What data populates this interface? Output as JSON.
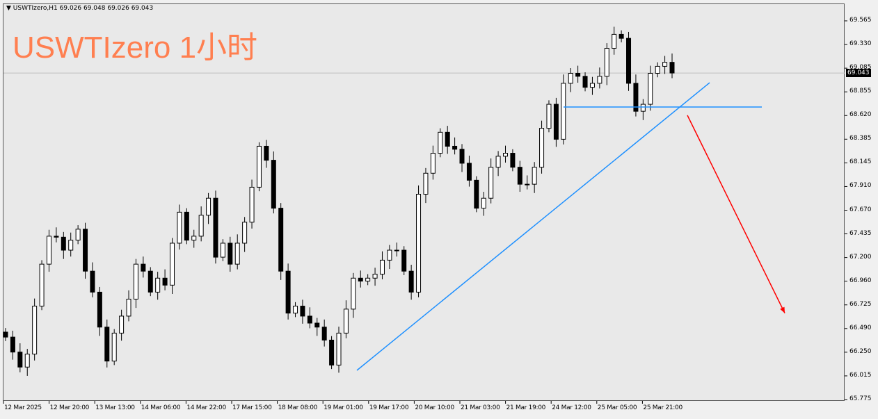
{
  "header": {
    "symbol_line": "USWTIzero,H1  69.026 69.048 69.026 69.043",
    "overlay_title": "USWTIzero 1小时"
  },
  "colors": {
    "title": "#ff7f50",
    "trendline": "#1e90ff",
    "arrow": "#ff0000",
    "background": "#e9e9e9",
    "bid_line": "#c0c0c0"
  },
  "chart_data": {
    "type": "candlestick",
    "symbol": "USWTIzero",
    "timeframe": "H1",
    "ohlc_last": {
      "open": 69.026,
      "high": 69.048,
      "low": 69.026,
      "close": 69.043
    },
    "bid": "69.043",
    "ylim": [
      65.775,
      69.565
    ],
    "y_ticks": [
      "69.565",
      "69.330",
      "69.085",
      "68.855",
      "68.620",
      "68.385",
      "68.145",
      "67.910",
      "67.670",
      "67.435",
      "67.200",
      "66.960",
      "66.725",
      "66.490",
      "66.250",
      "66.015",
      "65.775"
    ],
    "x_ticks": [
      "12 Mar 2025",
      "12 Mar 20:00",
      "13 Mar 13:00",
      "14 Mar 06:00",
      "14 Mar 22:00",
      "17 Mar 15:00",
      "18 Mar 08:00",
      "19 Mar 01:00",
      "19 Mar 17:00",
      "20 Mar 10:00",
      "21 Mar 03:00",
      "21 Mar 19:00",
      "24 Mar 12:00",
      "25 Mar 05:00",
      "25 Mar 21:00"
    ],
    "closes": [
      66.4,
      66.25,
      66.1,
      66.23,
      66.71,
      67.13,
      67.41,
      67.4,
      67.27,
      67.37,
      67.48,
      67.06,
      66.85,
      66.5,
      66.16,
      66.44,
      66.61,
      66.78,
      67.13,
      67.06,
      66.85,
      66.99,
      66.92,
      67.34,
      67.65,
      67.37,
      67.41,
      67.62,
      67.79,
      67.2,
      67.34,
      67.13,
      67.34,
      67.55,
      67.9,
      68.31,
      68.17,
      67.69,
      67.06,
      66.64,
      66.71,
      66.61,
      66.54,
      66.5,
      66.37,
      66.12,
      66.44,
      66.68,
      66.99,
      66.96,
      66.99,
      67.03,
      67.17,
      67.27,
      67.27,
      67.06,
      66.85,
      67.83,
      68.04,
      68.24,
      68.45,
      68.31,
      68.28,
      68.14,
      67.97,
      67.69,
      67.79,
      68.1,
      68.21,
      68.24,
      68.1,
      67.93,
      67.93,
      68.1,
      68.49,
      68.73,
      68.38,
      68.94,
      69.04,
      69.01,
      68.9,
      68.94,
      69.01,
      69.29,
      69.43,
      69.39,
      68.94,
      68.66,
      68.73,
      69.04,
      69.11,
      69.15,
      69.043
    ],
    "annotations": {
      "trendline": {
        "from_price": 66.067,
        "to_price": 68.946
      },
      "horizontal_level": 68.703,
      "arrow_down": {
        "from_price": 68.62,
        "to_price": 66.64
      }
    }
  }
}
